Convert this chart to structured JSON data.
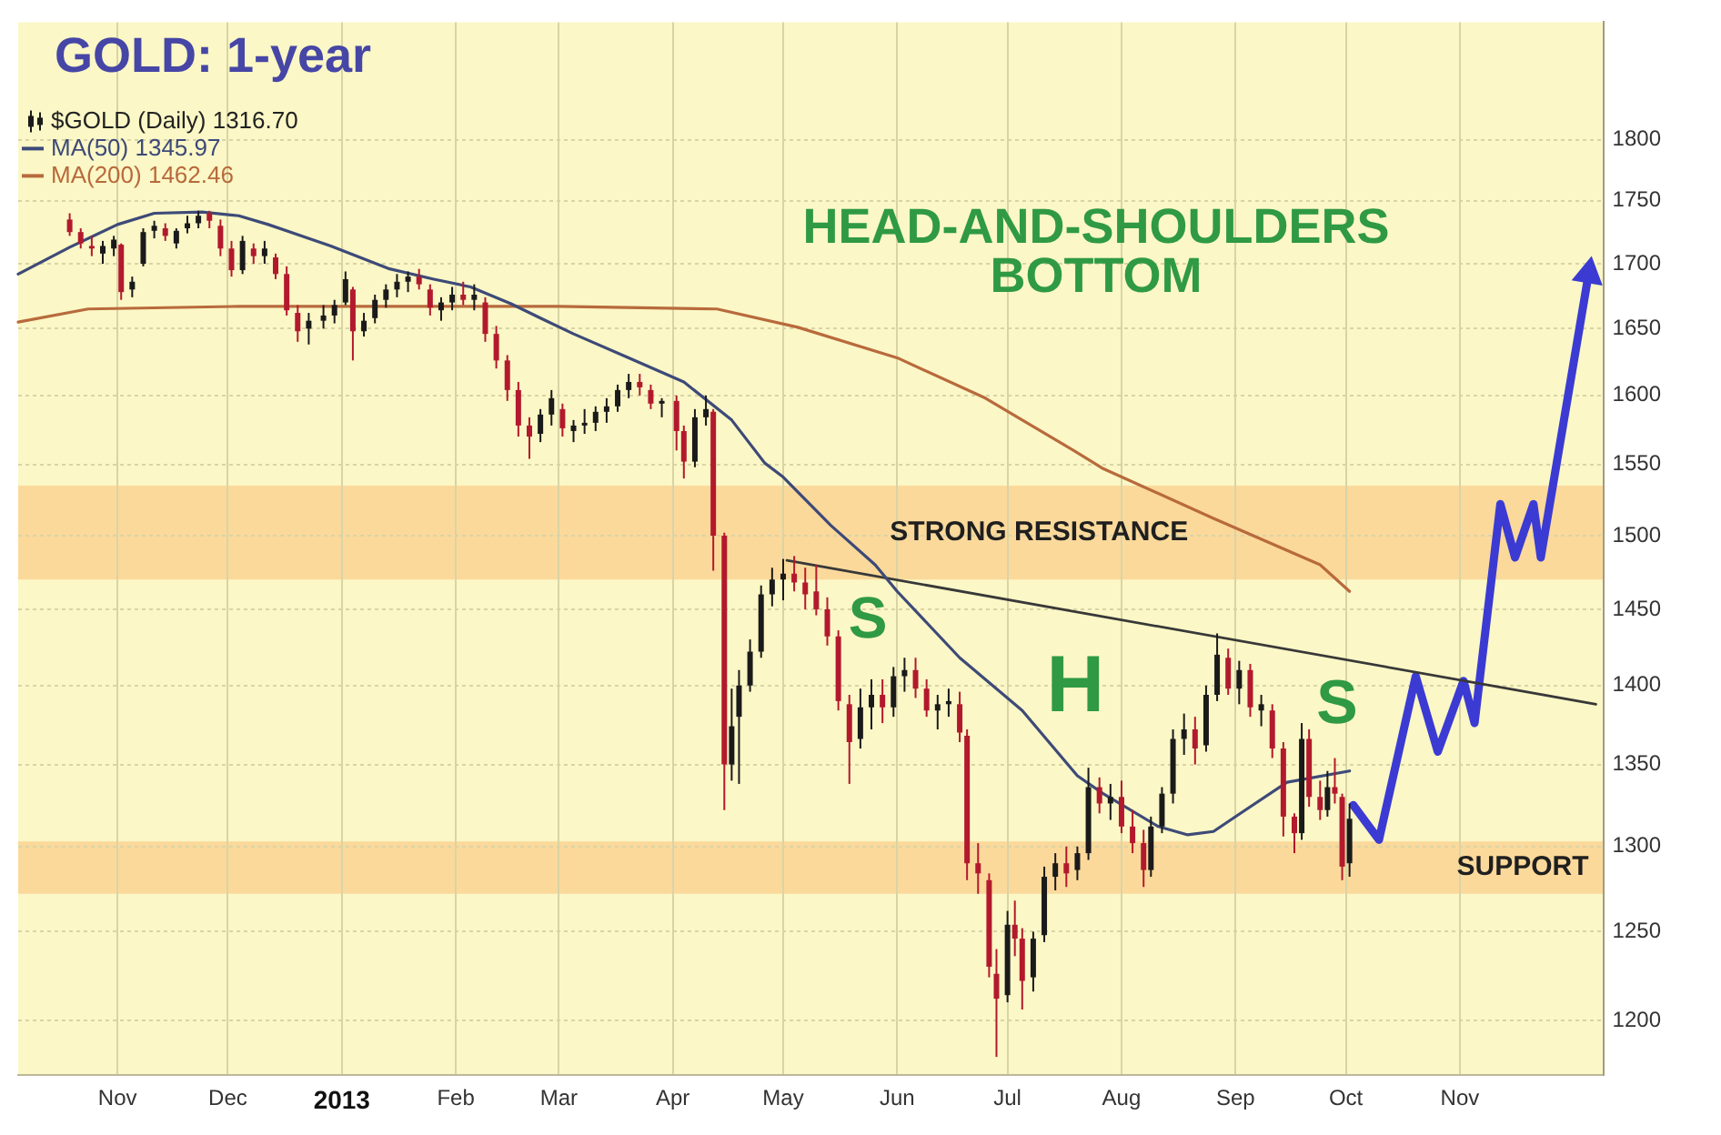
{
  "chart_data": {
    "type": "candlestick",
    "title": "GOLD: 1-year",
    "annotations": [
      "HEAD-AND-SHOULDERS BOTTOM",
      "S",
      "H",
      "S"
    ],
    "xlim": [
      "2012-10-05",
      "2013-12-10"
    ],
    "xticks": [
      {
        "value": "2012-11-01",
        "label": "Nov"
      },
      {
        "value": "2012-12-01",
        "label": "Dec"
      },
      {
        "value": "2013-01-01",
        "label": "2013"
      },
      {
        "value": "2013-02-01",
        "label": "Feb"
      },
      {
        "value": "2013-03-01",
        "label": "Mar"
      },
      {
        "value": "2013-04-01",
        "label": "Apr"
      },
      {
        "value": "2013-05-01",
        "label": "May"
      },
      {
        "value": "2013-06-01",
        "label": "Jun"
      },
      {
        "value": "2013-07-01",
        "label": "Jul"
      },
      {
        "value": "2013-08-01",
        "label": "Aug"
      },
      {
        "value": "2013-09-01",
        "label": "Sep"
      },
      {
        "value": "2013-10-01",
        "label": "Oct"
      },
      {
        "value": "2013-11-01",
        "label": "Nov"
      }
    ],
    "ylim": [
      1170,
      1900
    ],
    "yticks": [
      1200,
      1250,
      1300,
      1350,
      1400,
      1450,
      1500,
      1550,
      1600,
      1650,
      1700,
      1750,
      1800
    ],
    "log": true,
    "grid": true,
    "legend": "top left",
    "bands": [
      {
        "axis": "y",
        "from": 1470,
        "to": 1535,
        "label": "STRONG RESISTANCE",
        "color": "#fbd99b"
      },
      {
        "axis": "y",
        "from": 1272,
        "to": 1303,
        "label": "SUPPORT",
        "color": "#fbd99b"
      }
    ],
    "series": [
      {
        "name": "$GOLD (Daily) 1316.70",
        "x": [
          "2012-10-19",
          "2012-10-22",
          "2012-10-25",
          "2012-10-28",
          "2012-10-31",
          "2012-11-02",
          "2012-11-05",
          "2012-11-08",
          "2012-11-11",
          "2012-11-14",
          "2012-11-17",
          "2012-11-20",
          "2012-11-23",
          "2012-11-26",
          "2012-11-29",
          "2012-12-02",
          "2012-12-05",
          "2012-12-08",
          "2012-12-11",
          "2012-12-14",
          "2012-12-17",
          "2012-12-20",
          "2012-12-23",
          "2012-12-27",
          "2012-12-30",
          "2013-01-02",
          "2013-01-04",
          "2013-01-07",
          "2013-01-10",
          "2013-01-13",
          "2013-01-16",
          "2013-01-19",
          "2013-01-22",
          "2013-01-25",
          "2013-01-28",
          "2013-01-31",
          "2013-02-03",
          "2013-02-06",
          "2013-02-09",
          "2013-02-12",
          "2013-02-15",
          "2013-02-18",
          "2013-02-21",
          "2013-02-24",
          "2013-02-27",
          "2013-03-02",
          "2013-03-05",
          "2013-03-08",
          "2013-03-11",
          "2013-03-14",
          "2013-03-17",
          "2013-03-20",
          "2013-03-23",
          "2013-03-26",
          "2013-03-29",
          "2013-04-02",
          "2013-04-04",
          "2013-04-07",
          "2013-04-10",
          "2013-04-12",
          "2013-04-15",
          "2013-04-17",
          "2013-04-19",
          "2013-04-22",
          "2013-04-25",
          "2013-04-28",
          "2013-05-01",
          "2013-05-04",
          "2013-05-07",
          "2013-05-10",
          "2013-05-13",
          "2013-05-16",
          "2013-05-19",
          "2013-05-22",
          "2013-05-25",
          "2013-05-28",
          "2013-05-31",
          "2013-06-03",
          "2013-06-06",
          "2013-06-09",
          "2013-06-12",
          "2013-06-15",
          "2013-06-18",
          "2013-06-20",
          "2013-06-23",
          "2013-06-26",
          "2013-06-28",
          "2013-07-01",
          "2013-07-03",
          "2013-07-05",
          "2013-07-08",
          "2013-07-11",
          "2013-07-14",
          "2013-07-17",
          "2013-07-20",
          "2013-07-23",
          "2013-07-26",
          "2013-07-29",
          "2013-08-01",
          "2013-08-04",
          "2013-08-07",
          "2013-08-09",
          "2013-08-12",
          "2013-08-15",
          "2013-08-18",
          "2013-08-21",
          "2013-08-24",
          "2013-08-27",
          "2013-08-30",
          "2013-09-02",
          "2013-09-05",
          "2013-09-08",
          "2013-09-11",
          "2013-09-14",
          "2013-09-17",
          "2013-09-19",
          "2013-09-21",
          "2013-09-24",
          "2013-09-26",
          "2013-09-28",
          "2013-09-30",
          "2013-10-02"
        ],
        "ohlc": [
          [
            1735,
            1740,
            1722,
            1725
          ],
          [
            1725,
            1728,
            1712,
            1716
          ],
          [
            1714,
            1722,
            1706,
            1712
          ],
          [
            1708,
            1718,
            1700,
            1714
          ],
          [
            1712,
            1722,
            1706,
            1719
          ],
          [
            1715,
            1716,
            1672,
            1678
          ],
          [
            1680,
            1690,
            1674,
            1686
          ],
          [
            1700,
            1728,
            1698,
            1725
          ],
          [
            1726,
            1734,
            1720,
            1730
          ],
          [
            1728,
            1732,
            1718,
            1722
          ],
          [
            1716,
            1728,
            1712,
            1726
          ],
          [
            1728,
            1738,
            1724,
            1732
          ],
          [
            1732,
            1742,
            1728,
            1738
          ],
          [
            1740,
            1742,
            1728,
            1734
          ],
          [
            1730,
            1735,
            1706,
            1712
          ],
          [
            1712,
            1718,
            1690,
            1695
          ],
          [
            1695,
            1722,
            1692,
            1718
          ],
          [
            1712,
            1716,
            1700,
            1706
          ],
          [
            1706,
            1718,
            1700,
            1712
          ],
          [
            1705,
            1708,
            1688,
            1692
          ],
          [
            1692,
            1698,
            1660,
            1664
          ],
          [
            1662,
            1668,
            1640,
            1648
          ],
          [
            1650,
            1662,
            1638,
            1656
          ],
          [
            1656,
            1668,
            1650,
            1660
          ],
          [
            1660,
            1672,
            1654,
            1668
          ],
          [
            1670,
            1694,
            1668,
            1688
          ],
          [
            1680,
            1682,
            1626,
            1648
          ],
          [
            1648,
            1662,
            1644,
            1656
          ],
          [
            1658,
            1676,
            1654,
            1672
          ],
          [
            1672,
            1684,
            1666,
            1680
          ],
          [
            1680,
            1692,
            1674,
            1686
          ],
          [
            1686,
            1694,
            1678,
            1690
          ],
          [
            1690,
            1696,
            1680,
            1684
          ],
          [
            1680,
            1684,
            1660,
            1666
          ],
          [
            1664,
            1674,
            1656,
            1670
          ],
          [
            1670,
            1682,
            1664,
            1676
          ],
          [
            1676,
            1686,
            1668,
            1672
          ],
          [
            1672,
            1684,
            1664,
            1676
          ],
          [
            1670,
            1674,
            1640,
            1646
          ],
          [
            1646,
            1652,
            1620,
            1626
          ],
          [
            1626,
            1630,
            1596,
            1604
          ],
          [
            1604,
            1610,
            1570,
            1578
          ],
          [
            1578,
            1584,
            1554,
            1570
          ],
          [
            1572,
            1590,
            1566,
            1586
          ],
          [
            1586,
            1604,
            1578,
            1598
          ],
          [
            1590,
            1594,
            1570,
            1576
          ],
          [
            1574,
            1582,
            1566,
            1578
          ],
          [
            1578,
            1590,
            1572,
            1580
          ],
          [
            1580,
            1592,
            1574,
            1588
          ],
          [
            1588,
            1598,
            1580,
            1592
          ],
          [
            1592,
            1608,
            1588,
            1604
          ],
          [
            1604,
            1616,
            1598,
            1610
          ],
          [
            1610,
            1616,
            1600,
            1606
          ],
          [
            1604,
            1608,
            1590,
            1594
          ],
          [
            1594,
            1598,
            1584,
            1596
          ],
          [
            1596,
            1600,
            1560,
            1574
          ],
          [
            1574,
            1578,
            1540,
            1552
          ],
          [
            1552,
            1590,
            1548,
            1584
          ],
          [
            1584,
            1600,
            1578,
            1590
          ],
          [
            1588,
            1590,
            1476,
            1500
          ],
          [
            1500,
            1502,
            1322,
            1350
          ],
          [
            1350,
            1398,
            1340,
            1374
          ],
          [
            1380,
            1410,
            1338,
            1400
          ],
          [
            1400,
            1430,
            1396,
            1422
          ],
          [
            1422,
            1466,
            1418,
            1460
          ],
          [
            1460,
            1478,
            1452,
            1470
          ],
          [
            1470,
            1484,
            1456,
            1474
          ],
          [
            1474,
            1486,
            1462,
            1468
          ],
          [
            1468,
            1478,
            1450,
            1460
          ],
          [
            1462,
            1480,
            1446,
            1450
          ],
          [
            1450,
            1458,
            1426,
            1432
          ],
          [
            1432,
            1436,
            1384,
            1390
          ],
          [
            1388,
            1394,
            1338,
            1364
          ],
          [
            1366,
            1398,
            1360,
            1386
          ],
          [
            1386,
            1404,
            1372,
            1394
          ],
          [
            1394,
            1404,
            1376,
            1386
          ],
          [
            1386,
            1412,
            1380,
            1406
          ],
          [
            1406,
            1418,
            1396,
            1410
          ],
          [
            1410,
            1418,
            1392,
            1398
          ],
          [
            1398,
            1404,
            1380,
            1384
          ],
          [
            1384,
            1394,
            1372,
            1388
          ],
          [
            1388,
            1398,
            1380,
            1390
          ],
          [
            1388,
            1396,
            1364,
            1370
          ],
          [
            1368,
            1372,
            1280,
            1290
          ],
          [
            1290,
            1302,
            1272,
            1284
          ],
          [
            1280,
            1284,
            1224,
            1230
          ],
          [
            1226,
            1240,
            1180,
            1212
          ],
          [
            1214,
            1262,
            1210,
            1254
          ],
          [
            1254,
            1268,
            1236,
            1246
          ],
          [
            1246,
            1252,
            1206,
            1222
          ],
          [
            1224,
            1250,
            1216,
            1246
          ],
          [
            1248,
            1288,
            1244,
            1282
          ],
          [
            1282,
            1296,
            1274,
            1290
          ],
          [
            1290,
            1300,
            1276,
            1284
          ],
          [
            1286,
            1300,
            1280,
            1296
          ],
          [
            1296,
            1348,
            1292,
            1336
          ],
          [
            1336,
            1342,
            1320,
            1326
          ],
          [
            1326,
            1338,
            1316,
            1330
          ],
          [
            1330,
            1340,
            1308,
            1312
          ],
          [
            1312,
            1322,
            1296,
            1302
          ],
          [
            1302,
            1310,
            1276,
            1286
          ],
          [
            1286,
            1318,
            1282,
            1312
          ],
          [
            1312,
            1336,
            1308,
            1332
          ],
          [
            1332,
            1372,
            1326,
            1366
          ],
          [
            1366,
            1382,
            1356,
            1372
          ],
          [
            1372,
            1380,
            1350,
            1360
          ],
          [
            1362,
            1400,
            1358,
            1394
          ],
          [
            1394,
            1434,
            1390,
            1420
          ],
          [
            1418,
            1424,
            1394,
            1398
          ],
          [
            1398,
            1416,
            1388,
            1410
          ],
          [
            1410,
            1414,
            1380,
            1386
          ],
          [
            1384,
            1394,
            1374,
            1388
          ],
          [
            1384,
            1388,
            1354,
            1360
          ],
          [
            1360,
            1364,
            1306,
            1318
          ],
          [
            1318,
            1320,
            1296,
            1308
          ],
          [
            1308,
            1376,
            1304,
            1366
          ],
          [
            1366,
            1372,
            1324,
            1330
          ],
          [
            1330,
            1340,
            1316,
            1322
          ],
          [
            1322,
            1346,
            1318,
            1336
          ],
          [
            1336,
            1354,
            1326,
            1332
          ],
          [
            1330,
            1332,
            1280,
            1288
          ],
          [
            1290,
            1326,
            1282,
            1316.7
          ]
        ],
        "colors": [
          "#b3192c",
          "#b3192c",
          "#b3192c",
          "#1a1a1a",
          "#1a1a1a",
          "#b3192c",
          "#1a1a1a",
          "#1a1a1a",
          "#1a1a1a",
          "#b3192c",
          "#1a1a1a",
          "#1a1a1a",
          "#1a1a1a",
          "#b3192c",
          "#b3192c",
          "#b3192c",
          "#1a1a1a",
          "#b3192c",
          "#1a1a1a",
          "#b3192c",
          "#b3192c",
          "#b3192c",
          "#1a1a1a",
          "#1a1a1a",
          "#1a1a1a",
          "#1a1a1a",
          "#b3192c",
          "#1a1a1a",
          "#1a1a1a",
          "#1a1a1a",
          "#1a1a1a",
          "#1a1a1a",
          "#b3192c",
          "#b3192c",
          "#1a1a1a",
          "#1a1a1a",
          "#b3192c",
          "#1a1a1a",
          "#b3192c",
          "#b3192c",
          "#b3192c",
          "#b3192c",
          "#b3192c",
          "#1a1a1a",
          "#1a1a1a",
          "#b3192c",
          "#1a1a1a",
          "#1a1a1a",
          "#1a1a1a",
          "#1a1a1a",
          "#1a1a1a",
          "#1a1a1a",
          "#b3192c",
          "#b3192c",
          "#1a1a1a",
          "#b3192c",
          "#b3192c",
          "#1a1a1a",
          "#1a1a1a",
          "#b3192c",
          "#b3192c",
          "#1a1a1a",
          "#1a1a1a",
          "#1a1a1a",
          "#1a1a1a",
          "#1a1a1a",
          "#1a1a1a",
          "#b3192c",
          "#b3192c",
          "#b3192c",
          "#b3192c",
          "#b3192c",
          "#b3192c",
          "#1a1a1a",
          "#1a1a1a",
          "#b3192c",
          "#1a1a1a",
          "#1a1a1a",
          "#b3192c",
          "#b3192c",
          "#1a1a1a",
          "#1a1a1a",
          "#b3192c",
          "#b3192c",
          "#b3192c",
          "#b3192c",
          "#b3192c",
          "#1a1a1a",
          "#b3192c",
          "#b3192c",
          "#1a1a1a",
          "#1a1a1a",
          "#1a1a1a",
          "#b3192c",
          "#1a1a1a",
          "#1a1a1a",
          "#b3192c",
          "#1a1a1a",
          "#b3192c",
          "#b3192c",
          "#b3192c",
          "#1a1a1a",
          "#1a1a1a",
          "#1a1a1a",
          "#1a1a1a",
          "#b3192c",
          "#1a1a1a",
          "#1a1a1a",
          "#b3192c",
          "#1a1a1a",
          "#b3192c",
          "#1a1a1a",
          "#b3192c",
          "#b3192c",
          "#b3192c",
          "#1a1a1a",
          "#b3192c",
          "#b3192c",
          "#1a1a1a",
          "#b3192c",
          "#b3192c",
          "#1a1a1a"
        ]
      },
      {
        "name": "MA(50) 1345.97",
        "type": "line",
        "color": "#3d4a78",
        "x": [
          "2012-10-05",
          "2012-10-19",
          "2012-11-01",
          "2012-11-11",
          "2012-11-24",
          "2012-12-04",
          "2012-12-12",
          "2012-12-29",
          "2013-01-14",
          "2013-01-26",
          "2013-02-05",
          "2013-02-16",
          "2013-02-24",
          "2013-03-05",
          "2013-03-20",
          "2013-04-04",
          "2013-04-17",
          "2013-04-26",
          "2013-05-01",
          "2013-05-14",
          "2013-05-26",
          "2013-06-01",
          "2013-06-18",
          "2013-07-05",
          "2013-07-20",
          "2013-07-27",
          "2013-08-11",
          "2013-08-19",
          "2013-08-26",
          "2013-09-03",
          "2013-09-15",
          "2013-10-02"
        ],
        "values": [
          1692,
          1713,
          1731,
          1740,
          1741,
          1738,
          1731,
          1714,
          1696,
          1688,
          1682,
          1669,
          1658,
          1646,
          1628,
          1610,
          1582,
          1551,
          1541,
          1507,
          1480,
          1462,
          1418,
          1384,
          1343,
          1332,
          1312,
          1307,
          1309,
          1321,
          1339,
          1346
        ]
      },
      {
        "name": "MA(200) 1462.46",
        "type": "line",
        "color": "#b86a3c",
        "x": [
          "2012-10-05",
          "2012-10-24",
          "2012-12-04",
          "2013-03-01",
          "2013-04-13",
          "2013-05-05",
          "2013-06-01",
          "2013-06-25",
          "2013-07-19",
          "2013-07-27",
          "2013-08-26",
          "2013-09-24",
          "2013-10-02"
        ],
        "values": [
          1655,
          1665,
          1667,
          1667,
          1665,
          1651,
          1628,
          1598,
          1560,
          1547,
          1512,
          1480,
          1462
        ]
      },
      {
        "type": "line",
        "color": "#383838",
        "x": [
          "2013-05-02",
          "2013-12-08"
        ],
        "values": [
          1483,
          1388
        ]
      },
      {
        "type": "line",
        "color": "#3b3bd3",
        "x": [
          "2013-10-03",
          "2013-10-10",
          "2013-10-20",
          "2013-10-26",
          "2013-11-02",
          "2013-11-05",
          "2013-11-12",
          "2013-11-16",
          "2013-11-21",
          "2013-11-23",
          "2013-12-06"
        ],
        "values": [
          1325,
          1304,
          1406,
          1358,
          1403,
          1376,
          1522,
          1485,
          1522,
          1485,
          1692
        ]
      }
    ]
  }
}
